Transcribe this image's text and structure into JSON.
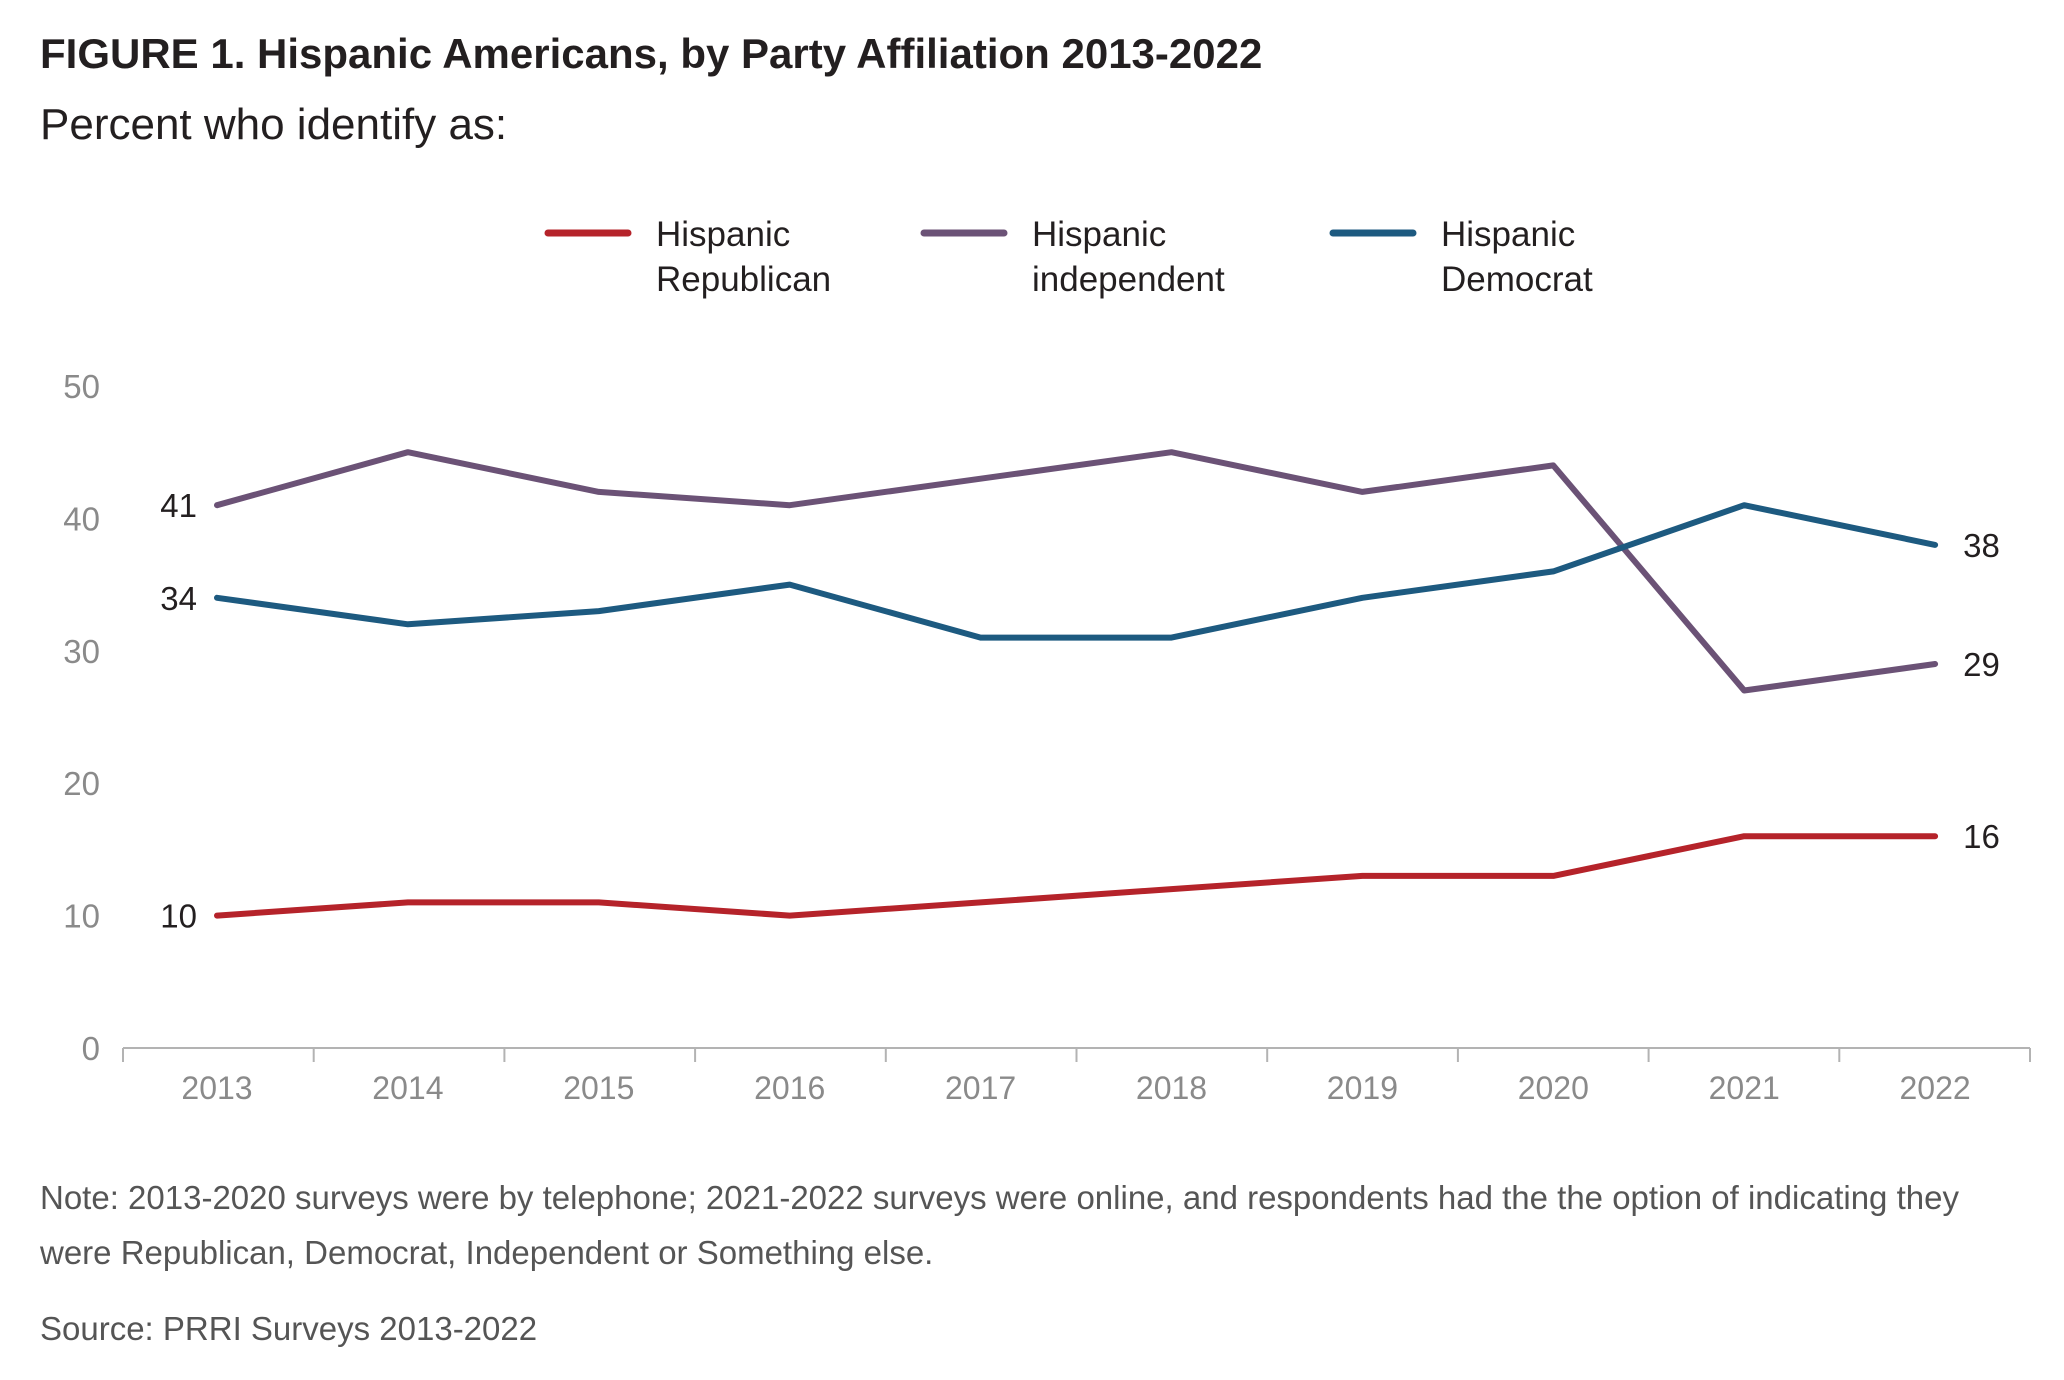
{
  "header": {
    "title": "FIGURE 1. Hispanic Americans, by Party Affiliation 2013-2022",
    "subtitle": "Percent who identify as:"
  },
  "footer": {
    "note": "Note: 2013-2020 surveys were by telephone; 2021-2022 surveys were online, and respondents had the the option of indicating they were Republican, Democrat, Independent or Something else.",
    "source": "Source: PRRI Surveys 2013-2022"
  },
  "chart_data": {
    "type": "line",
    "title": "FIGURE 1. Hispanic Americans, by Party Affiliation 2013-2022",
    "subtitle": "Percent who identify as:",
    "x": [
      "2013",
      "2014",
      "2015",
      "2016",
      "2017",
      "2018",
      "2019",
      "2020",
      "2021",
      "2022"
    ],
    "ylim": [
      0,
      50
    ],
    "yticks": [
      0,
      10,
      20,
      30,
      40,
      50
    ],
    "grid": false,
    "legend_position": "top-center",
    "series": [
      {
        "name": "Hispanic Republican",
        "legend_lines": [
          "Hispanic",
          "Republican"
        ],
        "color": "#b5232a",
        "values": [
          10,
          11,
          11,
          10,
          11,
          12,
          13,
          13,
          16,
          16
        ],
        "labels": [
          {
            "index": 0,
            "text": "10"
          },
          {
            "index": 9,
            "text": "16"
          }
        ]
      },
      {
        "name": "Hispanic independent",
        "legend_lines": [
          "Hispanic",
          "independent"
        ],
        "color": "#6b5276",
        "values": [
          41,
          45,
          42,
          41,
          43,
          45,
          42,
          44,
          27,
          29
        ],
        "labels": [
          {
            "index": 0,
            "text": "41"
          },
          {
            "index": 9,
            "text": "29"
          }
        ]
      },
      {
        "name": "Hispanic Democrat",
        "legend_lines": [
          "Hispanic",
          "Democrat"
        ],
        "color": "#1d5a80",
        "values": [
          34,
          32,
          33,
          35,
          31,
          31,
          34,
          36,
          41,
          38
        ],
        "labels": [
          {
            "index": 0,
            "text": "34"
          },
          {
            "index": 9,
            "text": "38"
          }
        ]
      }
    ]
  }
}
